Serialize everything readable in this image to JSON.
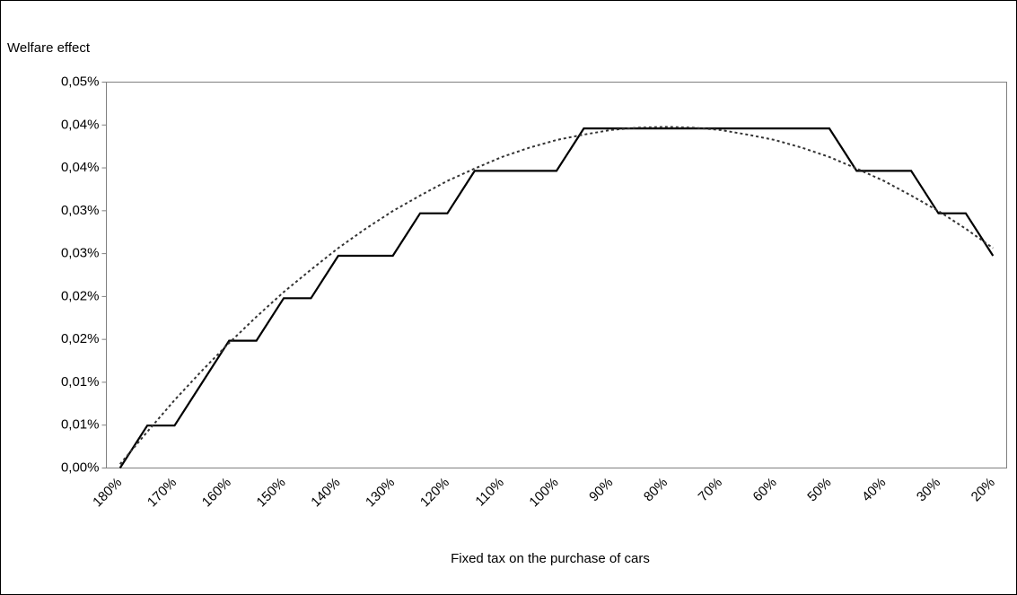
{
  "chart_data": {
    "type": "line",
    "ylabel": "Welfare effect",
    "xlabel": "Fixed tax on the purchase of cars",
    "categories": [
      "180%",
      null,
      "170%",
      null,
      "160%",
      null,
      "150%",
      null,
      "140%",
      null,
      "130%",
      null,
      "120%",
      null,
      "110%",
      null,
      "100%",
      null,
      "90%",
      null,
      "80%",
      null,
      "70%",
      null,
      "60%",
      null,
      "50%",
      null,
      "40%",
      null,
      "30%",
      null,
      "20%"
    ],
    "series": [
      {
        "color": "#000000",
        "dashed": false,
        "values": [
          0,
          0.0055,
          0.0055,
          0.011,
          0.0165,
          0.0165,
          0.022,
          0.022,
          0.0275,
          0.0275,
          0.0275,
          0.033,
          0.033,
          0.0385,
          0.0385,
          0.0385,
          0.0385,
          0.044,
          0.044,
          0.044,
          0.044,
          0.044,
          0.044,
          0.044,
          0.044,
          0.044,
          0.044,
          0.0385,
          0.0385,
          0.0385,
          0.033,
          0.033,
          0.0275
        ]
      },
      {
        "color": "#333333",
        "dashed": true,
        "values": [
          0.0005,
          0.0047,
          0.0088,
          0.0126,
          0.0162,
          0.0196,
          0.0228,
          0.0257,
          0.0285,
          0.031,
          0.0333,
          0.0353,
          0.0372,
          0.0388,
          0.0403,
          0.0415,
          0.0425,
          0.0432,
          0.0438,
          0.0441,
          0.0442,
          0.0441,
          0.0438,
          0.0432,
          0.0425,
          0.0415,
          0.0403,
          0.0388,
          0.0372,
          0.0353,
          0.0333,
          0.031,
          0.0285
        ]
      }
    ],
    "ylim": [
      0,
      0.05
    ],
    "yticks": [
      {
        "value": 0,
        "label": "0,00%"
      },
      {
        "value": 0.005556,
        "label": "0,01%"
      },
      {
        "value": 0.011111,
        "label": "0,01%"
      },
      {
        "value": 0.016667,
        "label": "0,02%"
      },
      {
        "value": 0.022222,
        "label": "0,02%"
      },
      {
        "value": 0.027778,
        "label": "0,03%"
      },
      {
        "value": 0.033333,
        "label": "0,03%"
      },
      {
        "value": 0.038889,
        "label": "0,04%"
      },
      {
        "value": 0.044444,
        "label": "0,04%"
      },
      {
        "value": 0.05,
        "label": "0,05%"
      }
    ],
    "grid": false
  }
}
